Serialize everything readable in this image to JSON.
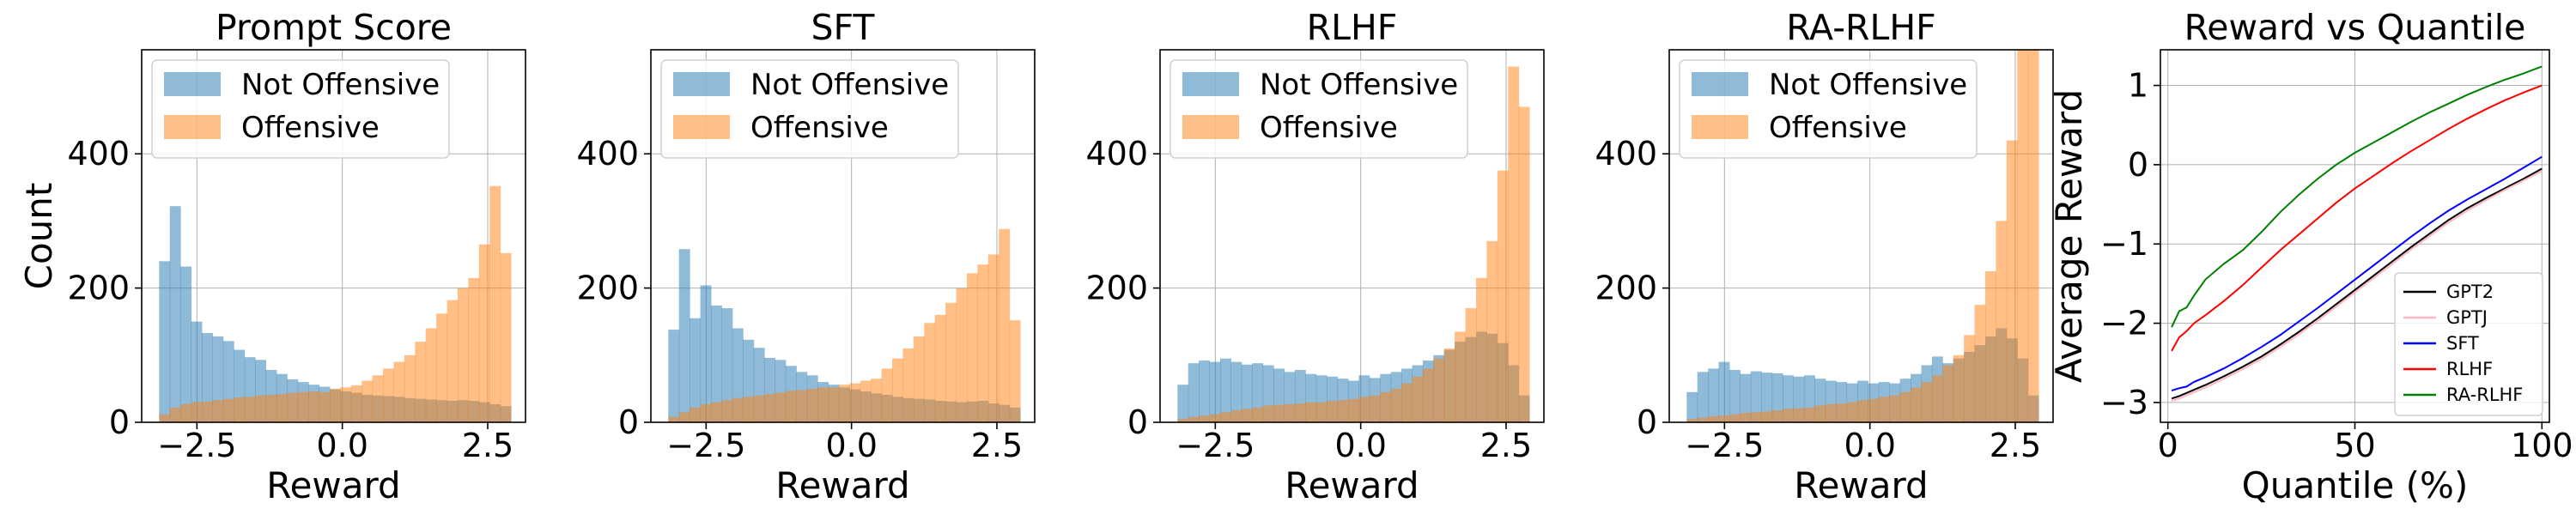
{
  "chart_data": [
    {
      "type": "histogram",
      "title": "Prompt Score",
      "xlabel": "Reward",
      "ylabel": "Count",
      "xlim": [
        -3.45,
        3.15
      ],
      "ylim": [
        0,
        555
      ],
      "xticks": [
        -2.5,
        0.0,
        2.5
      ],
      "xtick_labels": [
        "−2.5",
        "0.0",
        "2.5"
      ],
      "yticks": [
        0,
        200,
        400
      ],
      "ytick_labels": [
        "0",
        "200",
        "400"
      ],
      "grid": true,
      "legend_position": "upper-left",
      "bin_edges_range": [
        -3.15,
        2.9
      ],
      "series": [
        {
          "name": "Not Offensive",
          "color": "#1f77b4",
          "values": [
            240,
            322,
            232,
            150,
            133,
            128,
            121,
            108,
            97,
            93,
            78,
            72,
            64,
            60,
            56,
            53,
            49,
            46,
            44,
            41,
            40,
            39,
            38,
            36,
            35,
            34,
            33,
            32,
            33,
            32,
            30,
            27,
            24
          ]
        },
        {
          "name": "Offensive",
          "color": "#ff7f0e",
          "values": [
            12,
            22,
            27,
            30,
            31,
            33,
            35,
            37,
            38,
            40,
            41,
            42,
            44,
            45,
            46,
            45,
            50,
            52,
            55,
            62,
            70,
            80,
            90,
            100,
            120,
            140,
            162,
            182,
            200,
            215,
            265,
            352,
            252
          ]
        }
      ]
    },
    {
      "type": "histogram",
      "title": "SFT",
      "xlabel": "Reward",
      "ylabel": "",
      "xlim": [
        -3.45,
        3.15
      ],
      "ylim": [
        0,
        555
      ],
      "xticks": [
        -2.5,
        0.0,
        2.5
      ],
      "xtick_labels": [
        "−2.5",
        "0.0",
        "2.5"
      ],
      "yticks": [
        0,
        200,
        400
      ],
      "ytick_labels": [
        "0",
        "200",
        "400"
      ],
      "grid": true,
      "legend_position": "upper-left",
      "bin_edges_range": [
        -3.15,
        2.9
      ],
      "series": [
        {
          "name": "Not Offensive",
          "color": "#1f77b4",
          "values": [
            138,
            258,
            155,
            204,
            174,
            170,
            140,
            123,
            111,
            96,
            93,
            84,
            75,
            70,
            60,
            56,
            52,
            49,
            46,
            43,
            41,
            38,
            36,
            35,
            34,
            32,
            31,
            30,
            31,
            32,
            28,
            26,
            22
          ]
        },
        {
          "name": "Offensive",
          "color": "#ff7f0e",
          "values": [
            8,
            15,
            22,
            27,
            30,
            33,
            36,
            38,
            40,
            42,
            44,
            47,
            48,
            50,
            52,
            52,
            56,
            58,
            62,
            65,
            80,
            95,
            110,
            128,
            148,
            160,
            178,
            200,
            222,
            235,
            250,
            288,
            152
          ]
        }
      ]
    },
    {
      "type": "histogram",
      "title": "RLHF",
      "xlabel": "Reward",
      "ylabel": "",
      "xlim": [
        -3.45,
        3.15
      ],
      "ylim": [
        0,
        555
      ],
      "xticks": [
        -2.5,
        0.0,
        2.5
      ],
      "xtick_labels": [
        "−2.5",
        "0.0",
        "2.5"
      ],
      "yticks": [
        0,
        200,
        400
      ],
      "ytick_labels": [
        "0",
        "200",
        "400"
      ],
      "grid": true,
      "legend_position": "upper-left",
      "bin_edges_range": [
        -3.15,
        2.9
      ],
      "series": [
        {
          "name": "Not Offensive",
          "color": "#1f77b4",
          "values": [
            56,
            88,
            92,
            90,
            95,
            90,
            86,
            88,
            85,
            80,
            75,
            78,
            72,
            70,
            68,
            65,
            62,
            70,
            66,
            72,
            75,
            80,
            85,
            92,
            100,
            108,
            120,
            127,
            135,
            132,
            118,
            85,
            40
          ]
        },
        {
          "name": "Offensive",
          "color": "#ff7f0e",
          "values": [
            5,
            8,
            10,
            12,
            15,
            18,
            20,
            22,
            25,
            26,
            27,
            28,
            30,
            30,
            32,
            33,
            35,
            38,
            40,
            45,
            50,
            58,
            68,
            80,
            95,
            110,
            135,
            170,
            215,
            270,
            375,
            530,
            470
          ]
        }
      ]
    },
    {
      "type": "histogram",
      "title": "RA-RLHF",
      "xlabel": "Reward",
      "ylabel": "",
      "xlim": [
        -3.45,
        3.15
      ],
      "ylim": [
        0,
        555
      ],
      "xticks": [
        -2.5,
        0.0,
        2.5
      ],
      "xtick_labels": [
        "−2.5",
        "0.0",
        "2.5"
      ],
      "yticks": [
        0,
        200,
        400
      ],
      "ytick_labels": [
        "0",
        "200",
        "400"
      ],
      "grid": true,
      "legend_position": "upper-left",
      "bin_edges_range": [
        -3.15,
        2.9
      ],
      "series": [
        {
          "name": "Not Offensive",
          "color": "#1f77b4",
          "values": [
            45,
            75,
            80,
            90,
            78,
            72,
            76,
            74,
            73,
            70,
            68,
            70,
            65,
            62,
            60,
            58,
            62,
            58,
            60,
            58,
            65,
            72,
            85,
            98,
            88,
            95,
            105,
            115,
            128,
            140,
            125,
            95,
            40
          ]
        },
        {
          "name": "Offensive",
          "color": "#ff7f0e",
          "values": [
            5,
            7,
            9,
            10,
            12,
            14,
            15,
            16,
            18,
            20,
            21,
            22,
            25,
            27,
            28,
            30,
            33,
            35,
            38,
            40,
            45,
            52,
            60,
            70,
            85,
            100,
            130,
            175,
            225,
            300,
            420,
            555,
            555
          ]
        }
      ]
    },
    {
      "type": "line",
      "title": "Reward vs Quantile",
      "xlabel": "Quantile (%)",
      "ylabel": "Average Reward",
      "xlim": [
        -2,
        102
      ],
      "ylim": [
        -3.25,
        1.45
      ],
      "xticks": [
        0,
        50,
        100
      ],
      "xtick_labels": [
        "0",
        "50",
        "100"
      ],
      "yticks": [
        -3,
        -2,
        -1,
        0,
        1
      ],
      "ytick_labels": [
        "−3",
        "−2",
        "−1",
        "0",
        "1"
      ],
      "grid": true,
      "legend_position": "lower-right",
      "x": [
        1,
        3,
        5,
        7,
        10,
        15,
        20,
        25,
        30,
        35,
        40,
        45,
        50,
        55,
        60,
        65,
        70,
        75,
        80,
        85,
        90,
        95,
        100
      ],
      "series": [
        {
          "name": "GPT2",
          "color": "#000000",
          "values": [
            -2.95,
            -2.92,
            -2.88,
            -2.84,
            -2.78,
            -2.67,
            -2.55,
            -2.42,
            -2.27,
            -2.11,
            -1.94,
            -1.76,
            -1.58,
            -1.4,
            -1.22,
            -1.04,
            -0.87,
            -0.7,
            -0.55,
            -0.42,
            -0.3,
            -0.18,
            -0.05
          ]
        },
        {
          "name": "GPTJ",
          "color": "#ffb6c1",
          "values": [
            -2.98,
            -2.95,
            -2.91,
            -2.87,
            -2.81,
            -2.7,
            -2.58,
            -2.45,
            -2.3,
            -2.14,
            -1.97,
            -1.79,
            -1.61,
            -1.43,
            -1.25,
            -1.07,
            -0.9,
            -0.73,
            -0.58,
            -0.45,
            -0.32,
            -0.2,
            -0.08
          ]
        },
        {
          "name": "SFT",
          "color": "#0000ff",
          "values": [
            -2.85,
            -2.82,
            -2.8,
            -2.74,
            -2.68,
            -2.57,
            -2.44,
            -2.3,
            -2.15,
            -1.98,
            -1.81,
            -1.63,
            -1.45,
            -1.27,
            -1.09,
            -0.91,
            -0.74,
            -0.58,
            -0.44,
            -0.31,
            -0.18,
            -0.04,
            0.1
          ]
        },
        {
          "name": "RLHF",
          "color": "#ff0000",
          "values": [
            -2.35,
            -2.18,
            -2.1,
            -2.0,
            -1.9,
            -1.72,
            -1.52,
            -1.3,
            -1.08,
            -0.88,
            -0.68,
            -0.48,
            -0.3,
            -0.14,
            0.02,
            0.17,
            0.31,
            0.45,
            0.58,
            0.7,
            0.81,
            0.91,
            1.0
          ]
        },
        {
          "name": "RA-RLHF",
          "color": "#008000",
          "values": [
            -2.05,
            -1.85,
            -1.8,
            -1.65,
            -1.45,
            -1.25,
            -1.08,
            -0.85,
            -0.6,
            -0.38,
            -0.18,
            0.0,
            0.15,
            0.28,
            0.41,
            0.54,
            0.66,
            0.77,
            0.88,
            0.98,
            1.07,
            1.15,
            1.24
          ]
        }
      ]
    }
  ]
}
